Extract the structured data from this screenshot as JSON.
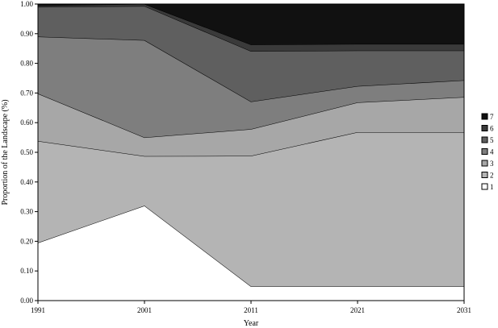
{
  "chart_data": {
    "type": "area",
    "stacked": true,
    "title": "",
    "xlabel": "Year",
    "ylabel": "Proportion of the Landscape (%)",
    "x": [
      1991,
      2001,
      2011,
      2021,
      2031
    ],
    "x_tick_labels": [
      "1991",
      "2001",
      "2011",
      "2021",
      "2031"
    ],
    "ylim": [
      0,
      1
    ],
    "y_tick_labels": [
      "0.00",
      "0.10",
      "0.20",
      "0.30",
      "0.40",
      "0.50",
      "0.60",
      "0.70",
      "0.80",
      "0.90",
      "1.00"
    ],
    "grid": false,
    "legend_position": "right",
    "series": [
      {
        "name": "1",
        "color": "#ffffff",
        "values": [
          0.195,
          0.32,
          0.048,
          0.048,
          0.048
        ]
      },
      {
        "name": "2",
        "color": "#b4b4b4",
        "values": [
          0.343,
          0.167,
          0.44,
          0.52,
          0.52
        ]
      },
      {
        "name": "3",
        "color": "#a7a7a7",
        "values": [
          0.16,
          0.063,
          0.09,
          0.1,
          0.118
        ]
      },
      {
        "name": "4",
        "color": "#7e7e7e",
        "values": [
          0.192,
          0.328,
          0.093,
          0.055,
          0.057
        ]
      },
      {
        "name": "5",
        "color": "#5f5f5f",
        "values": [
          0.1,
          0.115,
          0.17,
          0.12,
          0.1
        ]
      },
      {
        "name": "6",
        "color": "#3a3a3a",
        "values": [
          0.005,
          0.007,
          0.022,
          0.022,
          0.022
        ]
      },
      {
        "name": "7",
        "color": "#111111",
        "values": [
          0.005,
          0.0,
          0.137,
          0.135,
          0.135
        ]
      }
    ]
  }
}
